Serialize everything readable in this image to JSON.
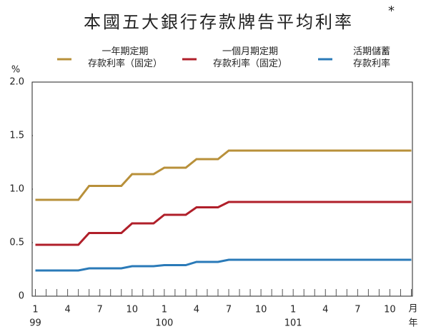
{
  "chart_data": {
    "type": "line",
    "title": "本國五大銀行存款牌告平均利率",
    "title_note": "*",
    "ylabel": "%",
    "x_unit": "月",
    "year_unit": "年",
    "x": [
      1,
      2,
      3,
      4,
      5,
      6,
      7,
      8,
      9,
      10,
      11,
      12,
      13,
      14,
      15,
      16,
      17,
      18,
      19,
      20,
      21,
      22,
      23,
      24,
      25,
      26,
      27,
      28,
      29,
      30,
      31,
      32,
      33,
      34,
      35,
      36
    ],
    "xlim": [
      0.7,
      36.1
    ],
    "xticks": [
      1,
      4,
      7,
      10,
      {
        "value": 13,
        "label": "1"
      },
      {
        "value": 16,
        "label": "4"
      },
      {
        "value": 19,
        "label": "7"
      },
      {
        "value": 22,
        "label": "10"
      },
      {
        "value": 25,
        "label": "1"
      },
      {
        "value": 28,
        "label": "4"
      },
      {
        "value": 31,
        "label": "7"
      },
      {
        "value": 34,
        "label": "10"
      }
    ],
    "year_labels": [
      {
        "value": 1,
        "label": "99"
      },
      {
        "value": 13,
        "label": "100"
      },
      {
        "value": 25,
        "label": "101"
      }
    ],
    "ylim": [
      0,
      2
    ],
    "yticks": [
      0,
      0.5,
      {
        "value": 1,
        "label": "1.0"
      },
      1.5,
      {
        "value": 2,
        "label": "2.0"
      }
    ],
    "grid": false,
    "series": [
      {
        "name": "一年期定期\n存款利率（固定）",
        "color": "#b8903a",
        "values": [
          0.9,
          0.9,
          0.9,
          0.9,
          0.9,
          1.03,
          1.03,
          1.03,
          1.03,
          1.14,
          1.14,
          1.14,
          1.2,
          1.2,
          1.2,
          1.28,
          1.28,
          1.28,
          1.36,
          1.36,
          1.36,
          1.36,
          1.36,
          1.36,
          1.36,
          1.36,
          1.36,
          1.36,
          1.36,
          1.36,
          1.36,
          1.36,
          1.36,
          1.36,
          1.36,
          1.36
        ]
      },
      {
        "name": "一個月期定期\n存款利率（固定）",
        "color": "#b01f2a",
        "values": [
          0.48,
          0.48,
          0.48,
          0.48,
          0.48,
          0.59,
          0.59,
          0.59,
          0.59,
          0.68,
          0.68,
          0.68,
          0.76,
          0.76,
          0.76,
          0.83,
          0.83,
          0.83,
          0.88,
          0.88,
          0.88,
          0.88,
          0.88,
          0.88,
          0.88,
          0.88,
          0.88,
          0.88,
          0.88,
          0.88,
          0.88,
          0.88,
          0.88,
          0.88,
          0.88,
          0.88
        ]
      },
      {
        "name": "活期儲蓄\n存款利率",
        "color": "#2a7ab8",
        "values": [
          0.24,
          0.24,
          0.24,
          0.24,
          0.24,
          0.26,
          0.26,
          0.26,
          0.26,
          0.28,
          0.28,
          0.28,
          0.29,
          0.29,
          0.29,
          0.32,
          0.32,
          0.32,
          0.34,
          0.34,
          0.34,
          0.34,
          0.34,
          0.34,
          0.34,
          0.34,
          0.34,
          0.34,
          0.34,
          0.34,
          0.34,
          0.34,
          0.34,
          0.34,
          0.34,
          0.34
        ]
      }
    ]
  }
}
